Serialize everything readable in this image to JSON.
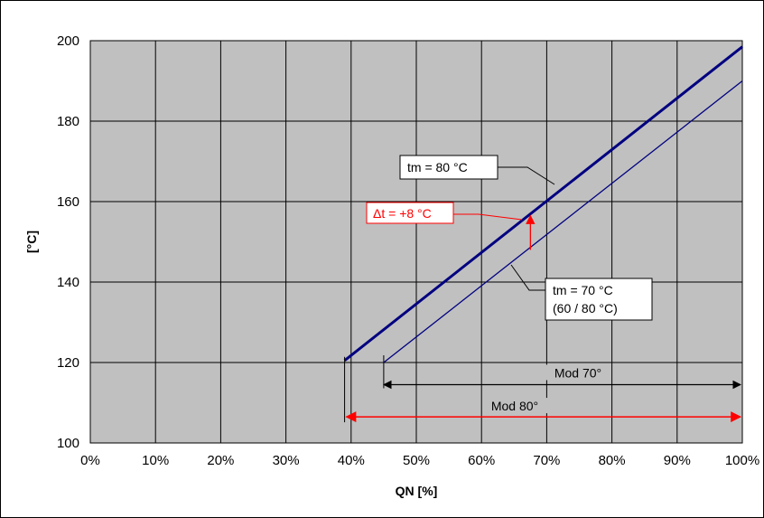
{
  "chart_data": {
    "type": "line",
    "title": "",
    "xlabel": "QN [%]",
    "ylabel": "[°C]",
    "xlim": [
      0,
      100
    ],
    "ylim": [
      100,
      200
    ],
    "x_ticks": [
      0,
      10,
      20,
      30,
      40,
      50,
      60,
      70,
      80,
      90,
      100
    ],
    "x_tick_labels": [
      "0%",
      "10%",
      "20%",
      "30%",
      "40%",
      "50%",
      "60%",
      "70%",
      "80%",
      "90%",
      "100%"
    ],
    "y_ticks": [
      100,
      120,
      140,
      160,
      180,
      200
    ],
    "y_tick_labels": [
      "100",
      "120",
      "140",
      "160",
      "180",
      "200"
    ],
    "grid": true,
    "plot_background": "#c0c0c0",
    "series": [
      {
        "name": "tm = 80 °C",
        "color": "#000080",
        "width": "thick",
        "x": [
          39,
          100
        ],
        "y": [
          120.5,
          198.5
        ]
      },
      {
        "name": "tm = 70 °C",
        "color": "#000080",
        "width": "thin",
        "x": [
          45,
          100
        ],
        "y": [
          120,
          190
        ]
      }
    ],
    "annotations": {
      "tm80": {
        "text": "tm = 80 °C"
      },
      "tm70": {
        "line1": "tm = 70 °C",
        "line2": "(60 / 80 °C)"
      },
      "delta": {
        "text": "Δt = +8 °C",
        "color": "#ff0000",
        "x": 67.5,
        "y_from": 148,
        "y_to": 156.5
      },
      "mod70": {
        "text": "Mod 70°",
        "x_from": 45,
        "x_to": 100,
        "y": 114.5,
        "color": "#000000"
      },
      "mod80": {
        "text": "Mod 80°",
        "x_from": 39,
        "x_to": 100,
        "y": 106.5,
        "color": "#ff0000"
      }
    }
  }
}
